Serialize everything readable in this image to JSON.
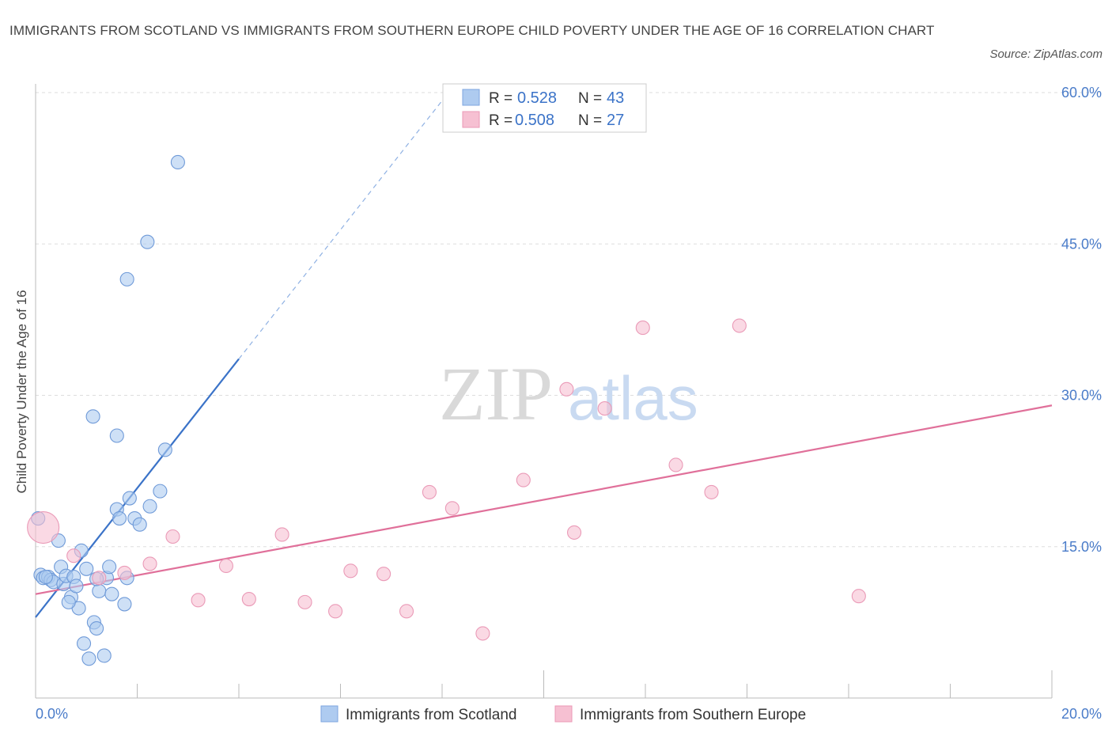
{
  "title": "IMMIGRANTS FROM SCOTLAND VS IMMIGRANTS FROM SOUTHERN EUROPE CHILD POVERTY UNDER THE AGE OF 16 CORRELATION CHART",
  "source": "Source: ZipAtlas.com",
  "watermark": {
    "zip": "ZIP",
    "atlas": "atlas"
  },
  "colors": {
    "blue": "#3b73c8",
    "blue_fill": "#aecbf0",
    "pink": "#e0709a",
    "pink_fill": "#f6c0d2",
    "grid": "#dddddd",
    "axis_text": "#4a7cc9"
  },
  "chart_data": {
    "type": "scatter",
    "xlabel": "",
    "ylabel": "Child Poverty Under the Age of 16",
    "xlim": [
      0,
      20
    ],
    "ylim": [
      0,
      60
    ],
    "x_tick_labels": {
      "left": "0.0%",
      "right": "20.0%"
    },
    "y_ticks": [
      {
        "value": 15,
        "label": "15.0%"
      },
      {
        "value": 30,
        "label": "30.0%"
      },
      {
        "value": 45,
        "label": "45.0%"
      },
      {
        "value": 60,
        "label": "60.0%"
      }
    ],
    "legend": {
      "entries": [
        {
          "r_label": "R =",
          "r_value": "0.528",
          "n_label": "N =",
          "n_value": "43"
        },
        {
          "r_label": "R =",
          "r_value": "0.508",
          "n_label": "N =",
          "n_value": "27"
        }
      ]
    },
    "series": [
      {
        "name": "Immigrants from Scotland",
        "color": "#3b73c8",
        "fill": "#aecbf0",
        "points": [
          [
            0.05,
            17.8
          ],
          [
            0.1,
            12.2
          ],
          [
            0.15,
            11.9
          ],
          [
            0.25,
            12.0
          ],
          [
            0.3,
            11.7
          ],
          [
            0.35,
            11.5
          ],
          [
            0.45,
            15.6
          ],
          [
            0.5,
            13.0
          ],
          [
            0.55,
            11.3
          ],
          [
            0.6,
            12.1
          ],
          [
            0.7,
            10.0
          ],
          [
            0.75,
            12.0
          ],
          [
            0.8,
            11.1
          ],
          [
            0.85,
            8.9
          ],
          [
            0.9,
            14.6
          ],
          [
            0.95,
            5.4
          ],
          [
            1.0,
            12.8
          ],
          [
            1.05,
            3.9
          ],
          [
            1.15,
            7.5
          ],
          [
            1.2,
            6.9
          ],
          [
            1.25,
            10.6
          ],
          [
            1.35,
            4.2
          ],
          [
            1.4,
            11.9
          ],
          [
            1.45,
            13.0
          ],
          [
            1.5,
            10.3
          ],
          [
            1.6,
            18.7
          ],
          [
            1.65,
            17.8
          ],
          [
            1.75,
            9.3
          ],
          [
            1.8,
            11.9
          ],
          [
            1.85,
            19.8
          ],
          [
            1.95,
            17.8
          ],
          [
            2.05,
            17.2
          ],
          [
            2.25,
            19.0
          ],
          [
            2.45,
            20.5
          ],
          [
            2.55,
            24.6
          ],
          [
            1.13,
            27.9
          ],
          [
            1.6,
            26.0
          ],
          [
            1.8,
            41.5
          ],
          [
            2.2,
            45.2
          ],
          [
            2.8,
            53.1
          ],
          [
            0.2,
            12.0
          ],
          [
            0.65,
            9.5
          ],
          [
            1.2,
            11.8
          ]
        ]
      },
      {
        "name": "Immigrants from Southern Europe",
        "color": "#e0709a",
        "fill": "#f6c0d2",
        "points": [
          [
            0.15,
            16.9
          ],
          [
            0.75,
            14.1
          ],
          [
            1.25,
            11.9
          ],
          [
            1.75,
            12.4
          ],
          [
            2.25,
            13.3
          ],
          [
            2.7,
            16.0
          ],
          [
            3.2,
            9.7
          ],
          [
            3.75,
            13.1
          ],
          [
            4.2,
            9.8
          ],
          [
            4.85,
            16.2
          ],
          [
            5.3,
            9.5
          ],
          [
            5.9,
            8.6
          ],
          [
            6.2,
            12.6
          ],
          [
            6.85,
            12.3
          ],
          [
            7.3,
            8.6
          ],
          [
            7.75,
            20.4
          ],
          [
            8.2,
            18.8
          ],
          [
            8.8,
            6.4
          ],
          [
            9.6,
            21.6
          ],
          [
            10.45,
            30.6
          ],
          [
            10.6,
            16.4
          ],
          [
            11.2,
            28.7
          ],
          [
            11.95,
            36.7
          ],
          [
            12.6,
            23.1
          ],
          [
            13.3,
            20.4
          ],
          [
            13.85,
            36.9
          ],
          [
            16.2,
            10.1
          ]
        ]
      }
    ],
    "trendlines": [
      {
        "series": "Immigrants from Scotland",
        "x_start": 0,
        "y_start": 8.0,
        "x_solid_end": 4.0,
        "y_solid_end": 33.6,
        "x_dash_end": 8.0,
        "y_dash_end": 59.2
      },
      {
        "series": "Immigrants from Southern Europe",
        "x_start": 0,
        "y_start": 10.3,
        "x_end": 20,
        "y_end": 29.0
      }
    ]
  }
}
